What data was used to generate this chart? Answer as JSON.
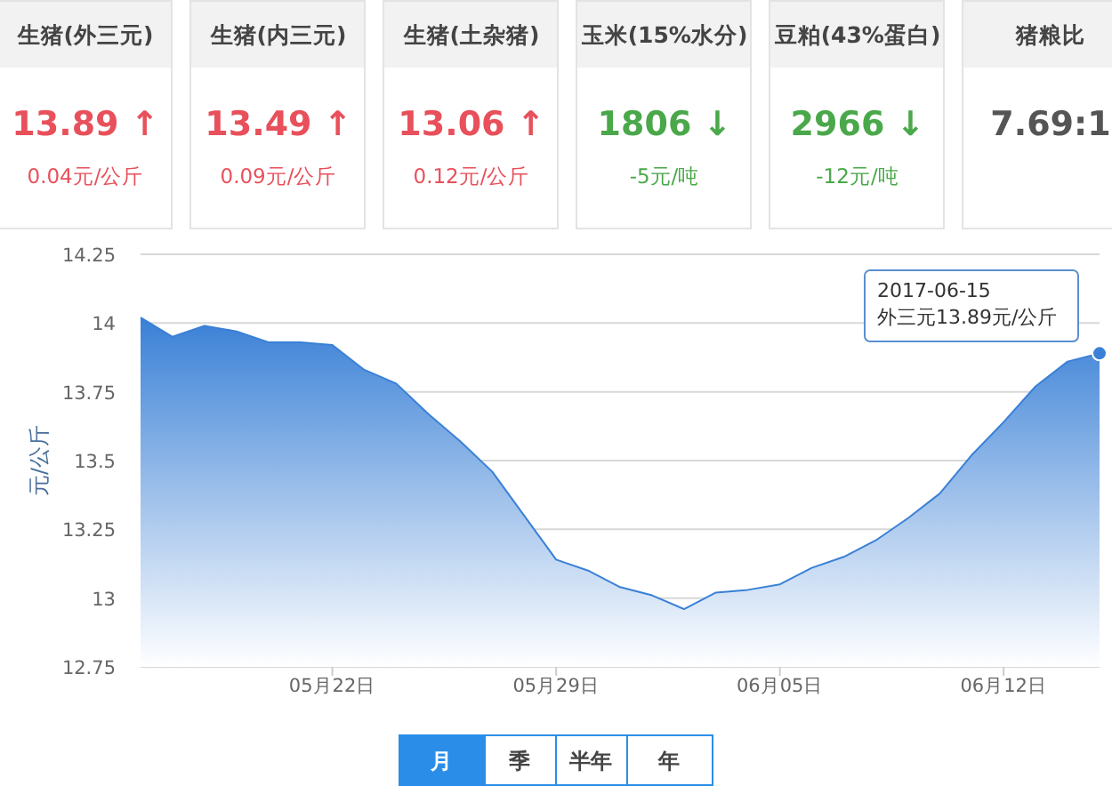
{
  "chart_data": [
    {
      "type": "other",
      "categories": [
        "生猪(外三元)",
        "生猪(内三元)",
        "生猪(土杂猪)",
        "玉米(15%水分)",
        "豆粕(43%蛋白)",
        "猪粮比"
      ],
      "value_labels": [
        "13.89 ↑",
        "13.49 ↑",
        "13.06 ↑",
        "1806 ↓",
        "2966 ↓",
        "7.69:1"
      ],
      "colors": [
        "#e8505b",
        "#e8505b",
        "#e8505b",
        "#4aa84a",
        "#4aa84a",
        "#555555"
      ],
      "annotations": [
        "0.04元/公斤",
        "0.09元/公斤",
        "0.12元/公斤",
        "-5元/吨",
        "-12元/吨"
      ]
    },
    {
      "type": "area",
      "ylabel": "元/公斤",
      "color": "#3a80d6",
      "grid": "y",
      "marker": "none",
      "x": [
        "2017-05-16",
        "2017-05-17",
        "2017-05-18",
        "2017-05-19",
        "2017-05-20",
        "2017-05-21",
        "2017-05-22",
        "2017-05-23",
        "2017-05-24",
        "2017-05-25",
        "2017-05-26",
        "2017-05-27",
        "2017-05-28",
        "2017-05-29",
        "2017-05-30",
        "2017-05-31",
        "2017-06-01",
        "2017-06-02",
        "2017-06-03",
        "2017-06-04",
        "2017-06-05",
        "2017-06-06",
        "2017-06-07",
        "2017-06-08",
        "2017-06-09",
        "2017-06-10",
        "2017-06-11",
        "2017-06-12",
        "2017-06-13",
        "2017-06-14",
        "2017-06-15"
      ],
      "values": [
        14.02,
        13.95,
        13.99,
        13.97,
        13.93,
        13.93,
        13.92,
        13.83,
        13.78,
        13.67,
        13.57,
        13.46,
        13.3,
        13.14,
        13.1,
        13.04,
        13.01,
        12.96,
        13.02,
        13.03,
        13.05,
        13.11,
        13.15,
        13.21,
        13.29,
        13.38,
        13.52,
        13.64,
        13.77,
        13.86,
        13.89
      ],
      "xlim": [
        "2017-05-16",
        "2017-06-15"
      ],
      "xticks": [
        {
          "value": "2017-05-22",
          "label": "05月22日"
        },
        {
          "value": "2017-05-29",
          "label": "05月29日"
        },
        {
          "value": "2017-06-05",
          "label": "06月05日"
        },
        {
          "value": "2017-06-12",
          "label": "06月12日"
        }
      ],
      "ylim": [
        12.75,
        14.25
      ],
      "yticks": [
        12.75,
        13,
        13.25,
        13.5,
        13.75,
        14,
        14.25
      ],
      "annotations": [
        {
          "text": "2017-06-15\n外三元13.89元/公斤",
          "x": "2017-06-15",
          "y": 13.89
        },
        "月",
        "季",
        "半年",
        "年"
      ]
    }
  ]
}
